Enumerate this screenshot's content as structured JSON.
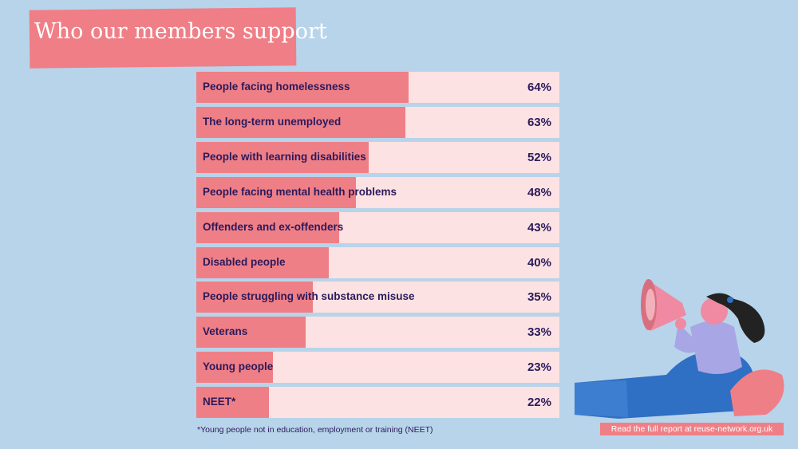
{
  "title": "Who our members support",
  "chart_data": {
    "type": "bar",
    "orientation": "horizontal",
    "categories": [
      "People facing homelessness",
      "The long-term unemployed",
      "People with learning disabilities",
      "People facing mental health problems",
      "Offenders and ex-offenders",
      "Disabled people",
      "People struggling with substance misuse",
      "Veterans",
      "Young people",
      "NEET*"
    ],
    "values": [
      64,
      63,
      52,
      48,
      43,
      40,
      35,
      33,
      23,
      22
    ],
    "labels": [
      "64%",
      "63%",
      "52%",
      "48%",
      "43%",
      "40%",
      "35%",
      "33%",
      "23%",
      "22%"
    ],
    "unit": "%",
    "grid": false,
    "legend": "none"
  },
  "footnote": "*Young people not in education, employment or training (NEET)",
  "report_link": "Read the full report at reuse-network.org.uk",
  "colors": {
    "background": "#b8d4ea",
    "bar_fill": "#ef7f86",
    "bar_track": "#fce2e2",
    "text": "#2b1a5c"
  },
  "illustration_icon": "woman-with-megaphone-icon"
}
